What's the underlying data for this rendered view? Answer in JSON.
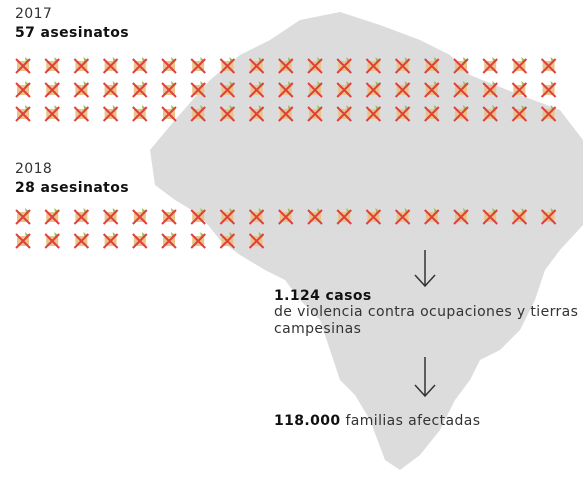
{
  "years": [
    {
      "year": "2017",
      "headline": "57 asesinatos"
    },
    {
      "year": "2018",
      "headline": "28 asesinatos"
    }
  ],
  "cases": {
    "headline": "1.124 casos",
    "description": "de violencia contra ocupaciones y tierras campesinas"
  },
  "families": {
    "number": "118.000",
    "text": "familias afectadas"
  },
  "watermark": "1124 casos"
}
